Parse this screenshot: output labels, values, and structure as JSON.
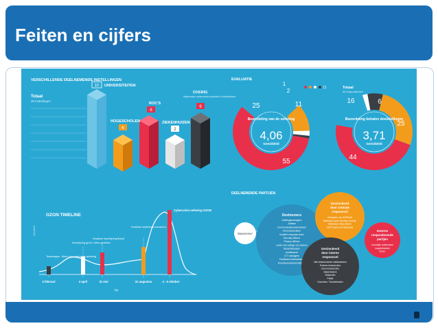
{
  "slide": {
    "title": "Feiten en cijfers"
  },
  "colors": {
    "header": "#1a6fb4",
    "panel": "#2aa8d4",
    "red": "#e8304b",
    "orange": "#f39c1c",
    "dark": "#3b3f44",
    "white": "#ffffff",
    "lightgray": "#e6e6e6"
  },
  "institutions": {
    "heading": "VERSCHILLENDE DEELNEMENDE INSTELLINGEN",
    "total_label": "Totaal",
    "total_value": "30 instellingen",
    "categories": [
      {
        "label": "UNIVERSITEITEN",
        "count": "10"
      },
      {
        "label": "ROC'S",
        "count": "6"
      },
      {
        "label": "HOGESCHOLEN",
        "count": "6"
      },
      {
        "label": "ZIEKENHUIZEN",
        "count": "2"
      },
      {
        "label": "OVERIG",
        "count": "6",
        "note": "Waaronder onderzoeks-instituten & bibliotheken"
      }
    ]
  },
  "evaluation": {
    "heading": "EVALUATIE",
    "legend_icon": "smiley-scale-icon",
    "total_label": "Totaal",
    "total_value": "34 respondenten",
    "donut1": {
      "title": "Beoordeling van de oefening",
      "value": "4,06",
      "sub": "Gemiddeld",
      "segments": [
        {
          "label": "55",
          "value": 55,
          "color": "#e8304b"
        },
        {
          "label": "25",
          "value": 25,
          "color": "#2aa8d4"
        },
        {
          "label": "11",
          "value": 11,
          "color": "#f39c1c"
        },
        {
          "label": "2",
          "value": 2,
          "color": "#ffffff"
        },
        {
          "label": "1",
          "value": 1,
          "color": "#3b3f44"
        }
      ]
    },
    "donut2": {
      "title": "Beoordeling behalen doelstellingen",
      "value": "3,71",
      "sub": "Gemiddeld",
      "segments": [
        {
          "label": "44",
          "value": 44,
          "color": "#e8304b"
        },
        {
          "label": "16",
          "value": 16,
          "color": "#2aa8d4"
        },
        {
          "label": "2",
          "value": 2,
          "color": "#ffffff"
        },
        {
          "label": "6",
          "value": 6,
          "color": "#3b3f44"
        },
        {
          "label": "25",
          "value": 25,
          "color": "#f39c1c"
        }
      ]
    }
  },
  "timeline": {
    "heading": "OZON TIMELINE",
    "axis_label": "Tijd",
    "milestones": [
      {
        "label": "Teambagne - Alles voor cybercrim-oefening",
        "date": "4 februari"
      },
      {
        "label": "Inschrijving groot / sfeer gesloten",
        "date": "4 april"
      },
      {
        "label": "Deadline inschrijving Board",
        "date": "31 mei"
      },
      {
        "label": "Deadline instellings-scenario's",
        "date": "31 augustus"
      },
      {
        "label": "Cybercrisis-oefening OZON",
        "date": "4 - 5 oktober"
      }
    ]
  },
  "parties": {
    "heading": "DEELNEMENDE PARTIJEN",
    "observer": "Waarnemer",
    "participants_title": "Deelnemers",
    "participants_lines": [
      "Afdelingsmanagers",
      "Juristen",
      "Communicatiemedewerkers",
      "Personeelszaken",
      "Incident response team",
      "Security officers",
      "Privacy officers",
      "Leden van college van bestuur",
      "Studentenraden",
      "Ambtenaren",
      "ICT managers",
      "Facilitaire medewerkers",
      "Roosterverantwoordelijken"
    ],
    "central_title": "Gesimuleerd door centrale responscel",
    "central_lines": [
      "Crisisteam van SURFcert",
      "Nationaal Cyber Security Centrum",
      "Nationaal Crisiscentrum",
      "CERT Bank van Nederland"
    ],
    "external_title": "Externe responderende partijen",
    "external_lines": [
      "Landelijke ambtenaren",
      "toegelichtsheid",
      "NCSC"
    ],
    "internal_title": "Gesimuleerd door interne responscel",
    "internal_lines": [
      "Niet deelnemende medewerkers",
      "Externe leveranciers",
      "Jouw leveranciers",
      "Stakeholders",
      "Studenten",
      "Politie",
      "Docenten / Toezichtraden"
    ]
  }
}
